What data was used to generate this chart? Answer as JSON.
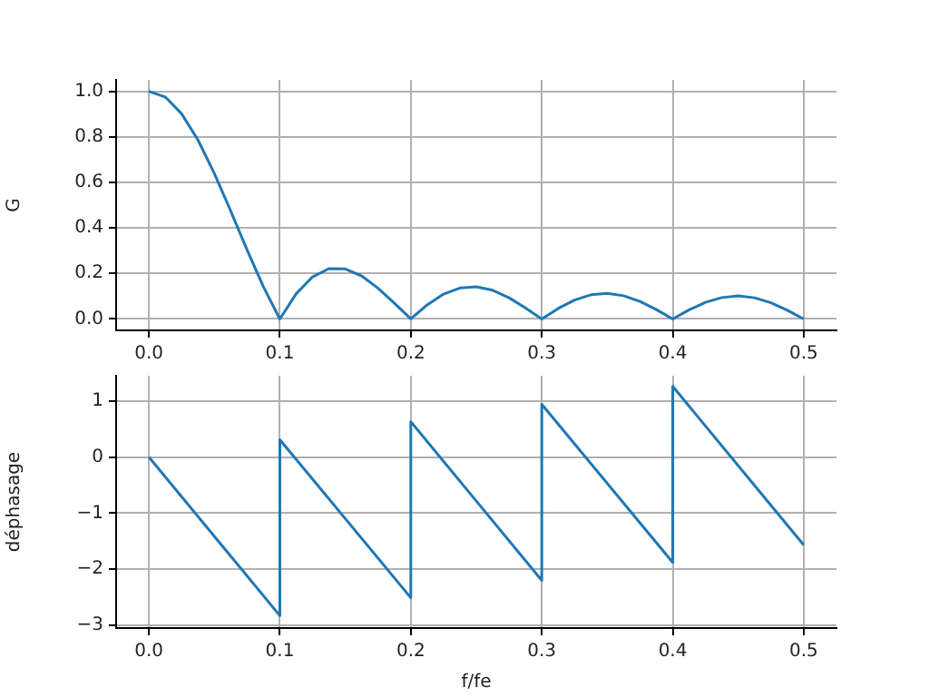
{
  "chart_data": [
    {
      "type": "line",
      "ylabel": "G",
      "grid": true,
      "xlim": [
        -0.025,
        0.525
      ],
      "xticks": [
        {
          "value": 0,
          "label": "0.0"
        },
        0.1,
        0.2,
        0.3,
        0.4,
        0.5
      ],
      "ylim": [
        -0.05,
        1.05
      ],
      "yticks": [
        {
          "value": 0,
          "label": "0.0"
        },
        0.2,
        0.4,
        0.6,
        0.8,
        {
          "value": 1,
          "label": "1.0"
        }
      ],
      "series": [
        {
          "color": "#1f77b4",
          "x": [
            0,
            0.0125,
            0.025,
            0.0375,
            0.05,
            0.0625,
            0.075,
            0.0875,
            0.1,
            0.1125,
            0.125,
            0.1375,
            0.15,
            0.1625,
            0.175,
            0.1875,
            0.2,
            0.2125,
            0.225,
            0.2375,
            0.25,
            0.2625,
            0.275,
            0.2875,
            0.3,
            0.3125,
            0.325,
            0.3375,
            0.35,
            0.3625,
            0.375,
            0.3875,
            0.4,
            0.4125,
            0.425,
            0.4375,
            0.45,
            0.4625,
            0.475,
            0.4875,
            0.5
          ],
          "values": [
            1,
            0.975,
            0.901,
            0.786,
            0.639,
            0.474,
            0.303,
            0.141,
            0,
            0.111,
            0.185,
            0.221,
            0.22,
            0.189,
            0.135,
            0.069,
            0,
            0.062,
            0.109,
            0.136,
            0.141,
            0.126,
            0.093,
            0.049,
            0,
            0.046,
            0.083,
            0.106,
            0.112,
            0.102,
            0.077,
            0.041,
            0,
            0.04,
            0.073,
            0.094,
            0.101,
            0.093,
            0.071,
            0.038,
            0
          ]
        }
      ]
    },
    {
      "type": "line",
      "xlabel": "f/fe",
      "ylabel": "déphasage",
      "grid": true,
      "xlim": [
        -0.025,
        0.525
      ],
      "xticks": [
        {
          "value": 0,
          "label": "0.0"
        },
        0.1,
        0.2,
        0.3,
        0.4,
        0.5
      ],
      "ylim": [
        -3.05,
        1.45
      ],
      "yticks": [
        {
          "value": -3,
          "label": "−3"
        },
        {
          "value": -2,
          "label": "−2"
        },
        {
          "value": -1,
          "label": "−1"
        },
        0,
        1
      ],
      "series": [
        {
          "color": "#1f77b4",
          "x": [
            0,
            0.1,
            0.1,
            0.2,
            0.2,
            0.3,
            0.3,
            0.4,
            0.4,
            0.5
          ],
          "values": [
            0,
            -2.83,
            0.31,
            -2.51,
            0.63,
            -2.2,
            0.94,
            -1.88,
            1.26,
            -1.57
          ]
        }
      ]
    }
  ]
}
